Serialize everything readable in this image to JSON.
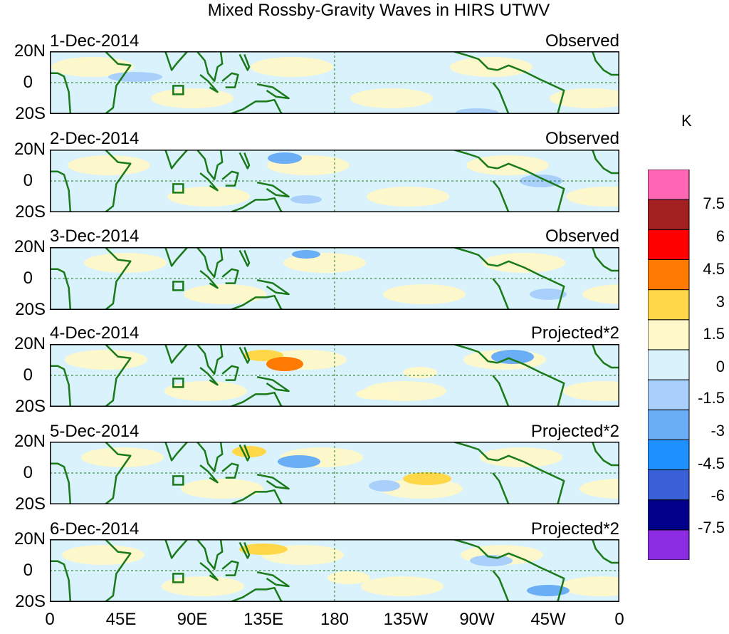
{
  "title": "Mixed Rossby-Gravity Waves in HIRS UTWV",
  "units": "K",
  "colorbar": {
    "colors": [
      "#8b2be2",
      "#00008b",
      "#3a5fd6",
      "#1e90ff",
      "#6aaef5",
      "#a9d0fb",
      "#d9f2fb",
      "#fff8c8",
      "#ffd84a",
      "#ff7a00",
      "#ff0000",
      "#a32020",
      "#ff66b3"
    ],
    "labels": [
      "-7.5",
      "-6",
      "-4.5",
      "-3",
      "-1.5",
      "0",
      "1.5",
      "3",
      "4.5",
      "6",
      "7.5"
    ]
  },
  "lat_labels": {
    "north": "20N",
    "equator": "0",
    "south": "20S"
  },
  "lon_labels": [
    "0",
    "45E",
    "90E",
    "135E",
    "180",
    "135W",
    "90W",
    "45W",
    "0"
  ],
  "panels": [
    {
      "date": "1-Dec-2014",
      "kind": "Observed"
    },
    {
      "date": "2-Dec-2014",
      "kind": "Observed"
    },
    {
      "date": "3-Dec-2014",
      "kind": "Observed"
    },
    {
      "date": "4-Dec-2014",
      "kind": "Projected*2"
    },
    {
      "date": "5-Dec-2014",
      "kind": "Projected*2"
    },
    {
      "date": "6-Dec-2014",
      "kind": "Projected*2"
    }
  ]
}
